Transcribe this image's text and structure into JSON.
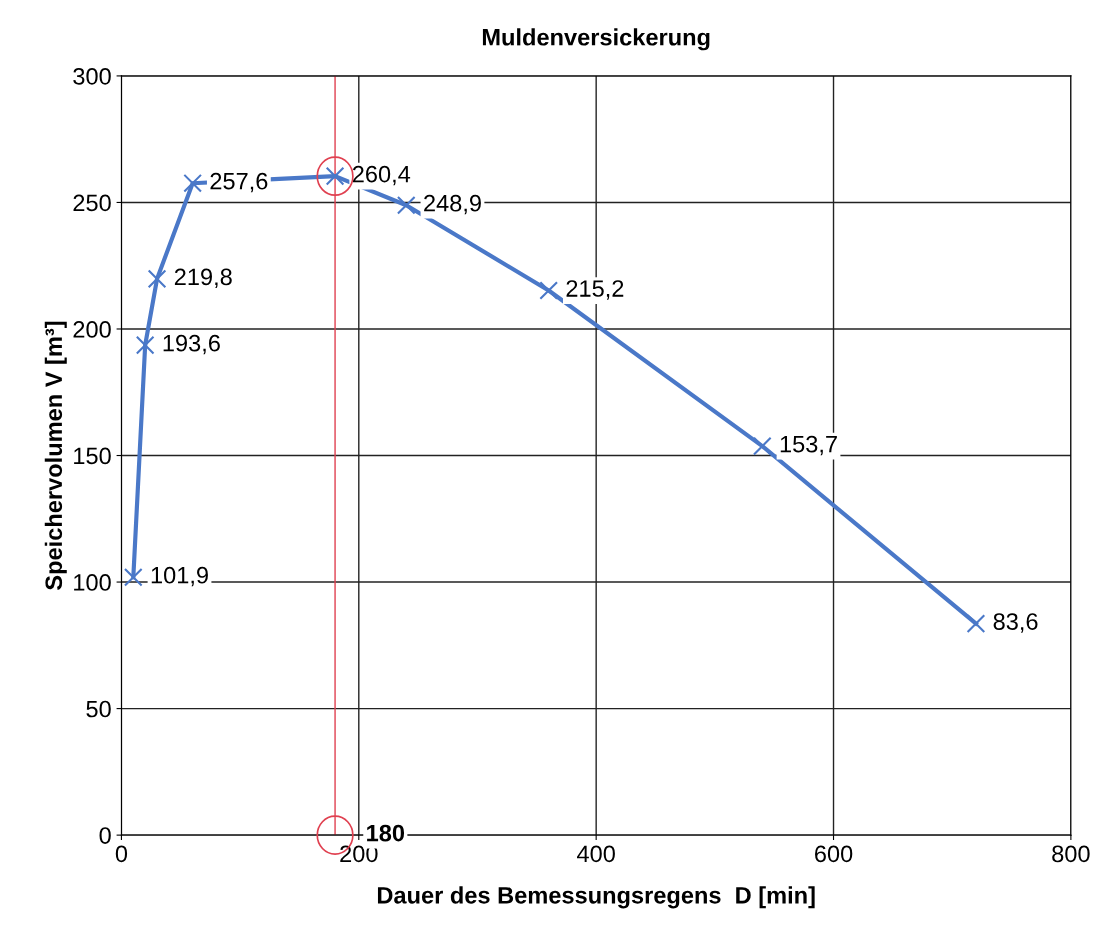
{
  "chart_data": {
    "type": "line",
    "title": "Muldenversickerung",
    "xlabel": "Dauer des Bemessungsregens  D [min]",
    "ylabel": "Speichervolumen V [m³]",
    "x": [
      10,
      20,
      30,
      60,
      180,
      240,
      360,
      540,
      720
    ],
    "series": [
      {
        "color": "#4a78c8",
        "values": [
          101.9,
          193.6,
          219.8,
          257.6,
          260.4,
          248.9,
          215.2,
          153.7,
          83.6
        ],
        "value_labels": [
          "101,9",
          "193,6",
          "219,8",
          "257,6",
          "260,4",
          "248,9",
          "215,2",
          "153,7",
          "83,6"
        ]
      }
    ],
    "xlim": [
      0,
      800
    ],
    "xticks": [
      0,
      200,
      400,
      600,
      800
    ],
    "ylim": [
      0,
      300
    ],
    "yticks": [
      0,
      50,
      100,
      150,
      200,
      250,
      300
    ],
    "grid": true,
    "marker": "cross",
    "line_style": "solid",
    "ref_lines": [
      {
        "axis": "x",
        "value": 180,
        "label": "180",
        "color": "#e04050"
      }
    ]
  }
}
